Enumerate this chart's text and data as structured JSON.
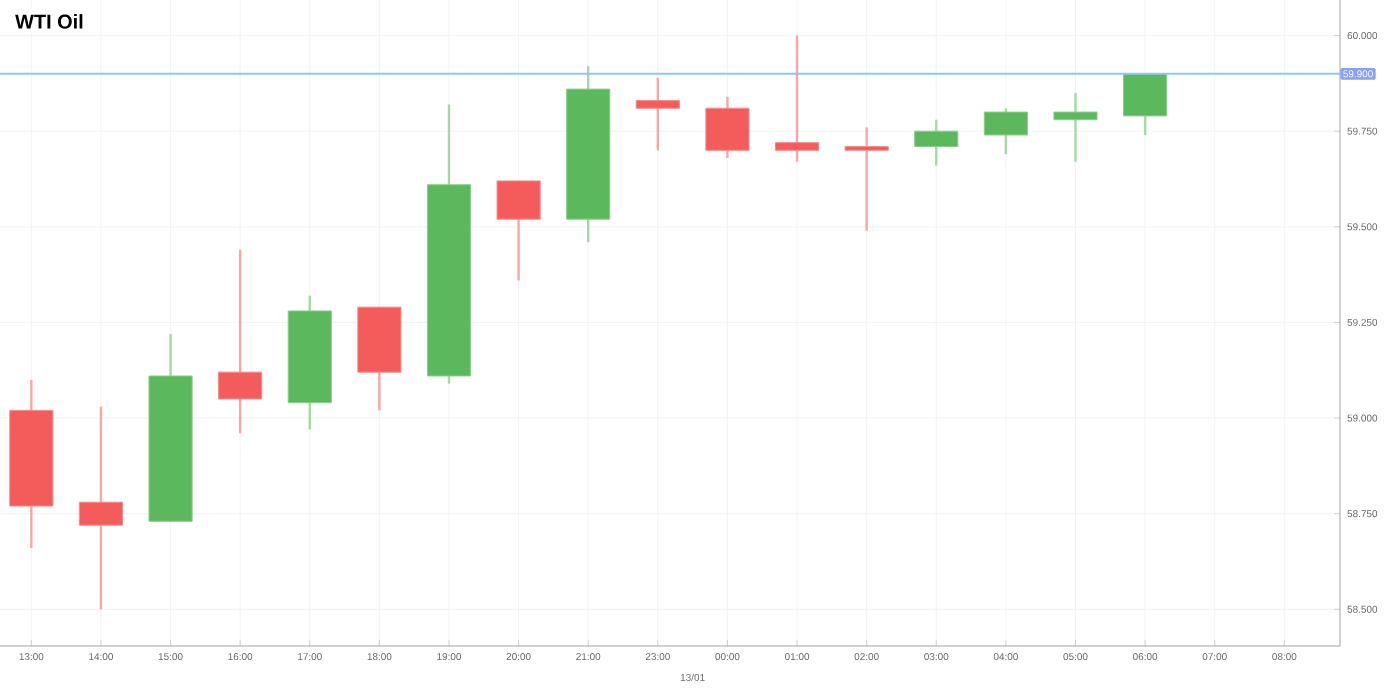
{
  "chart_data": {
    "type": "candlestick",
    "title": "WTI Oil",
    "categories": [
      "13:00",
      "14:00",
      "15:00",
      "16:00",
      "17:00",
      "18:00",
      "19:00",
      "20:00",
      "21:00",
      "23:00",
      "00:00",
      "01:00",
      "02:00",
      "03:00",
      "04:00",
      "05:00",
      "06:00",
      "07:00",
      "08:00"
    ],
    "ohlc": [
      [
        59.02,
        59.1,
        58.66,
        58.77
      ],
      [
        58.78,
        59.03,
        58.5,
        58.72
      ],
      [
        58.73,
        59.22,
        58.73,
        59.11
      ],
      [
        59.12,
        59.44,
        58.96,
        59.05
      ],
      [
        59.04,
        59.32,
        58.97,
        59.28
      ],
      [
        59.29,
        59.29,
        59.02,
        59.12
      ],
      [
        59.11,
        59.82,
        59.09,
        59.61
      ],
      [
        59.62,
        59.62,
        59.36,
        59.52
      ],
      [
        59.52,
        59.92,
        59.46,
        59.86
      ],
      [
        59.83,
        59.89,
        59.7,
        59.81
      ],
      [
        59.81,
        59.84,
        59.68,
        59.7
      ],
      [
        59.72,
        60.0,
        59.67,
        59.7
      ],
      [
        59.71,
        59.76,
        59.49,
        59.7
      ],
      [
        59.71,
        59.78,
        59.66,
        59.75
      ],
      [
        59.74,
        59.81,
        59.69,
        59.8
      ],
      [
        59.78,
        59.85,
        59.67,
        59.8
      ],
      [
        59.79,
        59.9,
        59.74,
        59.9
      ],
      null,
      null
    ],
    "colors": [
      "#f45b5b",
      "#f45b5b",
      "#5cb85c",
      "#f45b5b",
      "#5cb85c",
      "#f45b5b",
      "#5cb85c",
      "#f45b5b",
      "#5cb85c",
      "#f45b5b",
      "#f45b5b",
      "#f45b5b",
      "#f45b5b",
      "#5cb85c",
      "#5cb85c",
      "#5cb85c",
      "#5cb85c",
      null,
      null
    ],
    "ylim": [
      58.404,
      60.093
    ],
    "yticks": [
      {
        "value": 58.5,
        "label": "58.500"
      },
      {
        "value": 58.75,
        "label": "58.750"
      },
      {
        "value": 59,
        "label": "59.000"
      },
      {
        "value": 59.25,
        "label": "59.250"
      },
      {
        "value": 59.5,
        "label": "59.500"
      },
      {
        "value": 59.75,
        "label": "59.750"
      },
      {
        "value": 60,
        "label": "60.000"
      }
    ],
    "grid": true,
    "ref_lines": [
      {
        "axis": "y",
        "value": 59.9,
        "label": "59.900",
        "color": "#8ec8ef"
      }
    ],
    "annotations": [
      "13/01"
    ]
  }
}
